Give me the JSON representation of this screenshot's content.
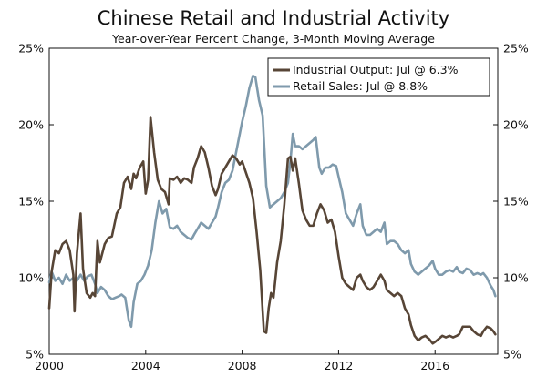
{
  "chart_data": {
    "type": "line",
    "title": "Chinese Retail and Industrial Activity",
    "subtitle": "Year-over-Year Percent Change, 3-Month Moving Average",
    "xlabel": "",
    "ylabel": "",
    "xlim": [
      2000,
      2018.6
    ],
    "ylim": [
      5,
      25
    ],
    "x_ticks": [
      2000,
      2004,
      2008,
      2012,
      2016
    ],
    "x_tick_labels": [
      "2000",
      "2004",
      "2008",
      "2012",
      "2016"
    ],
    "y_ticks": [
      5,
      10,
      15,
      20,
      25
    ],
    "y_tick_labels": [
      "5%",
      "10%",
      "15%",
      "20%",
      "25%"
    ],
    "legend_position": "top-right",
    "series": [
      {
        "name": "Industrial Output: Jul @ 6.3%",
        "color": "#574536",
        "points": [
          [
            2000.0,
            8.0
          ],
          [
            2000.1,
            10.4
          ],
          [
            2000.25,
            11.8
          ],
          [
            2000.4,
            11.6
          ],
          [
            2000.55,
            12.2
          ],
          [
            2000.7,
            12.4
          ],
          [
            2000.85,
            11.8
          ],
          [
            2001.0,
            10.2
          ],
          [
            2001.05,
            7.8
          ],
          [
            2001.15,
            11.6
          ],
          [
            2001.3,
            14.2
          ],
          [
            2001.4,
            10.6
          ],
          [
            2001.55,
            9.0
          ],
          [
            2001.7,
            8.7
          ],
          [
            2001.8,
            9.0
          ],
          [
            2001.9,
            8.8
          ],
          [
            2002.0,
            12.4
          ],
          [
            2002.1,
            11.0
          ],
          [
            2002.3,
            12.2
          ],
          [
            2002.45,
            12.6
          ],
          [
            2002.6,
            12.7
          ],
          [
            2002.8,
            14.2
          ],
          [
            2002.95,
            14.6
          ],
          [
            2003.1,
            16.2
          ],
          [
            2003.25,
            16.6
          ],
          [
            2003.4,
            15.8
          ],
          [
            2003.5,
            16.8
          ],
          [
            2003.6,
            16.5
          ],
          [
            2003.75,
            17.2
          ],
          [
            2003.9,
            17.6
          ],
          [
            2004.0,
            15.5
          ],
          [
            2004.1,
            16.4
          ],
          [
            2004.2,
            20.5
          ],
          [
            2004.35,
            18.2
          ],
          [
            2004.5,
            16.4
          ],
          [
            2004.65,
            15.8
          ],
          [
            2004.8,
            15.6
          ],
          [
            2004.95,
            14.8
          ],
          [
            2005.0,
            16.5
          ],
          [
            2005.15,
            16.4
          ],
          [
            2005.3,
            16.6
          ],
          [
            2005.45,
            16.2
          ],
          [
            2005.6,
            16.5
          ],
          [
            2005.75,
            16.4
          ],
          [
            2005.9,
            16.2
          ],
          [
            2006.0,
            17.2
          ],
          [
            2006.15,
            17.8
          ],
          [
            2006.3,
            18.6
          ],
          [
            2006.45,
            18.2
          ],
          [
            2006.6,
            17.2
          ],
          [
            2006.75,
            16.0
          ],
          [
            2006.9,
            15.4
          ],
          [
            2007.0,
            15.8
          ],
          [
            2007.15,
            16.8
          ],
          [
            2007.3,
            17.2
          ],
          [
            2007.45,
            17.6
          ],
          [
            2007.6,
            18.0
          ],
          [
            2007.75,
            17.8
          ],
          [
            2007.9,
            17.4
          ],
          [
            2008.0,
            17.6
          ],
          [
            2008.15,
            16.9
          ],
          [
            2008.3,
            16.2
          ],
          [
            2008.45,
            15.2
          ],
          [
            2008.6,
            13.0
          ],
          [
            2008.75,
            10.5
          ],
          [
            2008.9,
            6.5
          ],
          [
            2009.0,
            6.4
          ],
          [
            2009.1,
            8.0
          ],
          [
            2009.2,
            9.0
          ],
          [
            2009.3,
            8.7
          ],
          [
            2009.45,
            11.0
          ],
          [
            2009.6,
            12.4
          ],
          [
            2009.75,
            14.8
          ],
          [
            2009.9,
            17.8
          ],
          [
            2010.0,
            17.9
          ],
          [
            2010.1,
            17.0
          ],
          [
            2010.2,
            17.8
          ],
          [
            2010.35,
            16.2
          ],
          [
            2010.5,
            14.4
          ],
          [
            2010.65,
            13.8
          ],
          [
            2010.8,
            13.4
          ],
          [
            2010.95,
            13.4
          ],
          [
            2011.1,
            14.2
          ],
          [
            2011.25,
            14.8
          ],
          [
            2011.4,
            14.4
          ],
          [
            2011.55,
            13.6
          ],
          [
            2011.7,
            13.8
          ],
          [
            2011.85,
            13.0
          ],
          [
            2012.0,
            11.4
          ],
          [
            2012.15,
            10.0
          ],
          [
            2012.3,
            9.6
          ],
          [
            2012.45,
            9.4
          ],
          [
            2012.6,
            9.2
          ],
          [
            2012.75,
            10.0
          ],
          [
            2012.9,
            10.2
          ],
          [
            2013.0,
            9.8
          ],
          [
            2013.15,
            9.4
          ],
          [
            2013.3,
            9.2
          ],
          [
            2013.45,
            9.4
          ],
          [
            2013.6,
            9.8
          ],
          [
            2013.75,
            10.2
          ],
          [
            2013.9,
            9.8
          ],
          [
            2014.0,
            9.2
          ],
          [
            2014.15,
            9.0
          ],
          [
            2014.3,
            8.8
          ],
          [
            2014.45,
            9.0
          ],
          [
            2014.6,
            8.8
          ],
          [
            2014.75,
            8.0
          ],
          [
            2014.9,
            7.6
          ],
          [
            2015.0,
            6.9
          ],
          [
            2015.15,
            6.2
          ],
          [
            2015.3,
            5.9
          ],
          [
            2015.45,
            6.1
          ],
          [
            2015.6,
            6.2
          ],
          [
            2015.75,
            6.0
          ],
          [
            2015.9,
            5.7
          ],
          [
            2016.0,
            5.8
          ],
          [
            2016.15,
            6.0
          ],
          [
            2016.3,
            6.2
          ],
          [
            2016.45,
            6.1
          ],
          [
            2016.6,
            6.2
          ],
          [
            2016.75,
            6.1
          ],
          [
            2016.9,
            6.2
          ],
          [
            2017.0,
            6.3
          ],
          [
            2017.15,
            6.8
          ],
          [
            2017.3,
            6.8
          ],
          [
            2017.45,
            6.8
          ],
          [
            2017.6,
            6.5
          ],
          [
            2017.75,
            6.3
          ],
          [
            2017.9,
            6.2
          ],
          [
            2018.0,
            6.5
          ],
          [
            2018.15,
            6.8
          ],
          [
            2018.3,
            6.7
          ],
          [
            2018.42,
            6.5
          ],
          [
            2018.5,
            6.3
          ]
        ]
      },
      {
        "name": "Retail Sales: Jul @ 8.8%",
        "color": "#7f9aac",
        "points": [
          [
            2000.0,
            9.7
          ],
          [
            2000.1,
            10.4
          ],
          [
            2000.25,
            9.8
          ],
          [
            2000.4,
            10.0
          ],
          [
            2000.55,
            9.6
          ],
          [
            2000.7,
            10.2
          ],
          [
            2000.85,
            9.8
          ],
          [
            2001.0,
            10.0
          ],
          [
            2001.15,
            9.8
          ],
          [
            2001.3,
            10.2
          ],
          [
            2001.45,
            9.8
          ],
          [
            2001.6,
            10.1
          ],
          [
            2001.75,
            10.2
          ],
          [
            2001.9,
            9.6
          ],
          [
            2002.0,
            9.0
          ],
          [
            2002.15,
            9.4
          ],
          [
            2002.3,
            9.2
          ],
          [
            2002.45,
            8.8
          ],
          [
            2002.6,
            8.6
          ],
          [
            2002.75,
            8.7
          ],
          [
            2002.9,
            8.8
          ],
          [
            2003.0,
            8.9
          ],
          [
            2003.15,
            8.7
          ],
          [
            2003.3,
            7.2
          ],
          [
            2003.4,
            6.8
          ],
          [
            2003.5,
            8.4
          ],
          [
            2003.65,
            9.6
          ],
          [
            2003.8,
            9.8
          ],
          [
            2003.95,
            10.2
          ],
          [
            2004.1,
            10.8
          ],
          [
            2004.25,
            11.8
          ],
          [
            2004.4,
            13.6
          ],
          [
            2004.55,
            15.0
          ],
          [
            2004.7,
            14.2
          ],
          [
            2004.85,
            14.5
          ],
          [
            2005.0,
            13.3
          ],
          [
            2005.15,
            13.2
          ],
          [
            2005.3,
            13.4
          ],
          [
            2005.45,
            13.0
          ],
          [
            2005.6,
            12.8
          ],
          [
            2005.75,
            12.6
          ],
          [
            2005.9,
            12.5
          ],
          [
            2006.0,
            12.8
          ],
          [
            2006.15,
            13.2
          ],
          [
            2006.3,
            13.6
          ],
          [
            2006.45,
            13.4
          ],
          [
            2006.6,
            13.2
          ],
          [
            2006.75,
            13.6
          ],
          [
            2006.9,
            14.0
          ],
          [
            2007.0,
            14.6
          ],
          [
            2007.15,
            15.6
          ],
          [
            2007.3,
            16.2
          ],
          [
            2007.45,
            16.4
          ],
          [
            2007.6,
            17.0
          ],
          [
            2007.75,
            18.2
          ],
          [
            2007.9,
            19.4
          ],
          [
            2008.0,
            20.2
          ],
          [
            2008.15,
            21.2
          ],
          [
            2008.3,
            22.4
          ],
          [
            2008.45,
            23.2
          ],
          [
            2008.55,
            23.1
          ],
          [
            2008.7,
            21.6
          ],
          [
            2008.85,
            20.6
          ],
          [
            2009.0,
            16.0
          ],
          [
            2009.15,
            14.6
          ],
          [
            2009.3,
            14.8
          ],
          [
            2009.45,
            15.0
          ],
          [
            2009.6,
            15.2
          ],
          [
            2009.75,
            15.6
          ],
          [
            2009.9,
            16.2
          ],
          [
            2010.0,
            17.6
          ],
          [
            2010.1,
            19.4
          ],
          [
            2010.2,
            18.6
          ],
          [
            2010.35,
            18.6
          ],
          [
            2010.5,
            18.4
          ],
          [
            2010.65,
            18.6
          ],
          [
            2010.8,
            18.8
          ],
          [
            2010.95,
            19.0
          ],
          [
            2011.05,
            19.2
          ],
          [
            2011.2,
            17.2
          ],
          [
            2011.3,
            16.8
          ],
          [
            2011.45,
            17.2
          ],
          [
            2011.6,
            17.2
          ],
          [
            2011.75,
            17.4
          ],
          [
            2011.9,
            17.3
          ],
          [
            2012.0,
            16.6
          ],
          [
            2012.15,
            15.6
          ],
          [
            2012.3,
            14.2
          ],
          [
            2012.45,
            13.8
          ],
          [
            2012.6,
            13.4
          ],
          [
            2012.75,
            14.2
          ],
          [
            2012.9,
            14.8
          ],
          [
            2013.0,
            13.4
          ],
          [
            2013.15,
            12.8
          ],
          [
            2013.3,
            12.8
          ],
          [
            2013.45,
            13.0
          ],
          [
            2013.6,
            13.2
          ],
          [
            2013.75,
            13.0
          ],
          [
            2013.9,
            13.6
          ],
          [
            2014.0,
            12.2
          ],
          [
            2014.15,
            12.4
          ],
          [
            2014.3,
            12.4
          ],
          [
            2014.45,
            12.2
          ],
          [
            2014.6,
            11.8
          ],
          [
            2014.75,
            11.6
          ],
          [
            2014.9,
            11.8
          ],
          [
            2015.0,
            10.9
          ],
          [
            2015.15,
            10.4
          ],
          [
            2015.3,
            10.2
          ],
          [
            2015.45,
            10.4
          ],
          [
            2015.6,
            10.6
          ],
          [
            2015.75,
            10.8
          ],
          [
            2015.9,
            11.1
          ],
          [
            2016.0,
            10.6
          ],
          [
            2016.15,
            10.2
          ],
          [
            2016.3,
            10.2
          ],
          [
            2016.45,
            10.4
          ],
          [
            2016.6,
            10.5
          ],
          [
            2016.75,
            10.4
          ],
          [
            2016.9,
            10.7
          ],
          [
            2017.0,
            10.4
          ],
          [
            2017.15,
            10.3
          ],
          [
            2017.3,
            10.6
          ],
          [
            2017.45,
            10.5
          ],
          [
            2017.6,
            10.2
          ],
          [
            2017.75,
            10.3
          ],
          [
            2017.9,
            10.2
          ],
          [
            2018.0,
            10.3
          ],
          [
            2018.15,
            10.0
          ],
          [
            2018.3,
            9.5
          ],
          [
            2018.42,
            9.2
          ],
          [
            2018.5,
            8.8
          ]
        ]
      }
    ]
  }
}
